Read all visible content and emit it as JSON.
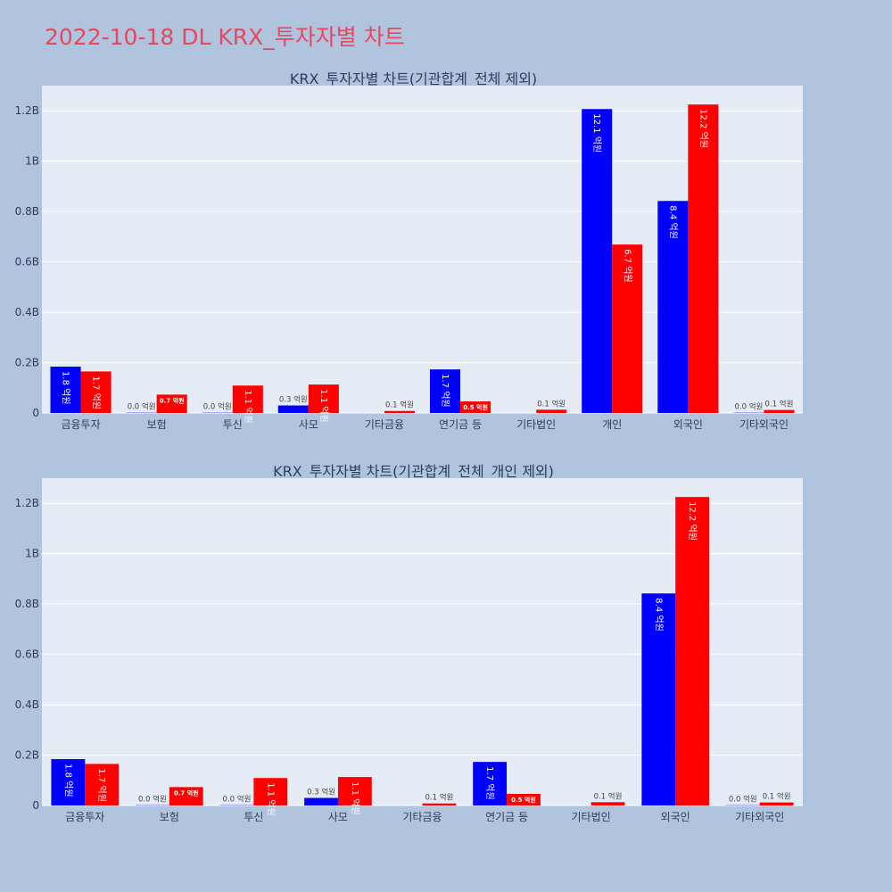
{
  "title": "2022-10-18 DL KRX_투자자별 차트",
  "colors": {
    "buy": "#0000ff",
    "sell": "#ff0000",
    "plot_bg": "#e5ecf6",
    "paper_bg": "#b0c4de",
    "title": "#e8475f"
  },
  "chart_data": [
    {
      "type": "bar",
      "title": "KRX_투자자별 차트(기관합계_전체 제외)",
      "categories": [
        "금융투자",
        "보험",
        "투신",
        "사모",
        "기타금융",
        "연기금 등",
        "기타법인",
        "개인",
        "외국인",
        "기타외국인"
      ],
      "series": [
        {
          "color": "#0000ff",
          "values": [
            184000000,
            1000000,
            1000000,
            30000000,
            0,
            173000000,
            0,
            1207000000,
            842000000,
            1000000
          ],
          "labels": [
            "1.8 억원",
            "0.0 억원",
            "0.0 억원",
            "0.3 억원",
            "",
            "1.7 억원",
            "",
            "12.1 억원",
            "8.4 억원",
            "0.0 억원"
          ]
        },
        {
          "color": "#ff0000",
          "values": [
            165000000,
            73000000,
            109000000,
            113000000,
            8000000,
            46000000,
            13000000,
            669000000,
            1225000000,
            12000000
          ],
          "labels": [
            "1.7 억원",
            "0.7 억원",
            "1.1 억원",
            "1.1 억원",
            "0.1 억원",
            "0.5 억원",
            "0.1 억원",
            "6.7 억원",
            "12.2 억원",
            "0.1 억원"
          ]
        }
      ],
      "ylim": [
        0,
        1300000000
      ],
      "yticks": [
        0,
        200000000,
        400000000,
        600000000,
        800000000,
        1000000000,
        1200000000
      ],
      "ytick_labels": [
        "0",
        "0.2B",
        "0.4B",
        "0.6B",
        "0.8B",
        "1B",
        "1.2B"
      ],
      "grid": true
    },
    {
      "type": "bar",
      "title": "KRX_투자자별 차트(기관합계_전체_개인 제외)",
      "categories": [
        "금융투자",
        "보험",
        "투신",
        "사모",
        "기타금융",
        "연기금 등",
        "기타법인",
        "외국인",
        "기타외국인"
      ],
      "series": [
        {
          "color": "#0000ff",
          "values": [
            184000000,
            1000000,
            1000000,
            30000000,
            0,
            173000000,
            0,
            842000000,
            1000000
          ],
          "labels": [
            "1.8 억원",
            "0.0 억원",
            "0.0 억원",
            "0.3 억원",
            "",
            "1.7 억원",
            "",
            "8.4 억원",
            "0.0 억원"
          ]
        },
        {
          "color": "#ff0000",
          "values": [
            165000000,
            73000000,
            109000000,
            113000000,
            8000000,
            46000000,
            13000000,
            1225000000,
            12000000
          ],
          "labels": [
            "1.7 억원",
            "0.7 억원",
            "1.1 억원",
            "1.1 억원",
            "0.1 억원",
            "0.5 억원",
            "0.1 억원",
            "12.2 억원",
            "0.1 억원"
          ]
        }
      ],
      "ylim": [
        0,
        1300000000
      ],
      "yticks": [
        0,
        200000000,
        400000000,
        600000000,
        800000000,
        1000000000,
        1200000000
      ],
      "ytick_labels": [
        "0",
        "0.2B",
        "0.4B",
        "0.6B",
        "0.8B",
        "1B",
        "1.2B"
      ],
      "grid": true
    }
  ]
}
